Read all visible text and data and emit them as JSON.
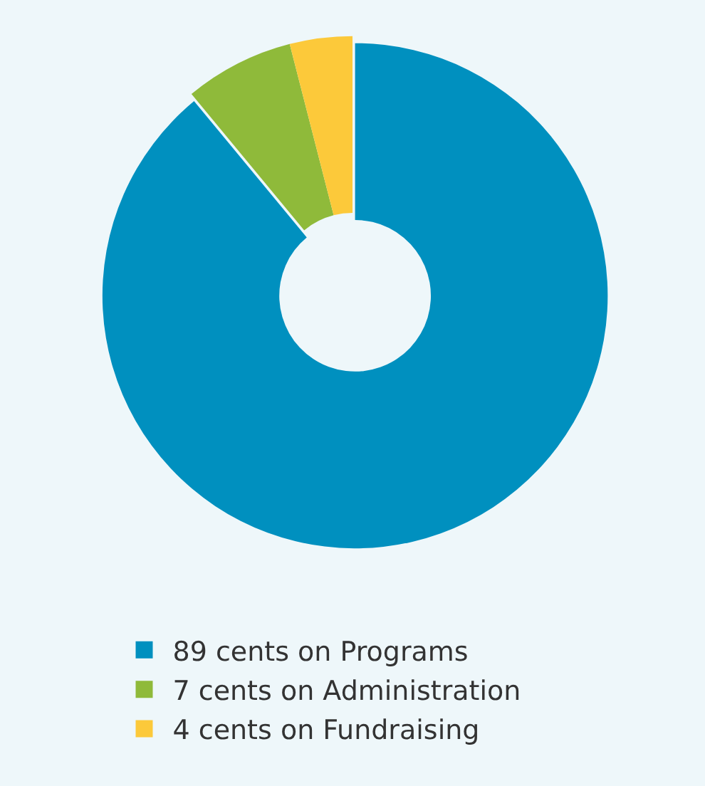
{
  "chart_data": {
    "type": "donut",
    "categories": [
      "89 cents on Programs",
      "7 cents on Administration",
      "4 cents on Fundraising"
    ],
    "values": [
      89,
      7,
      4
    ],
    "colors": [
      "#0090bf",
      "#8fba3a",
      "#fcc93a"
    ],
    "legend": "bottom"
  }
}
